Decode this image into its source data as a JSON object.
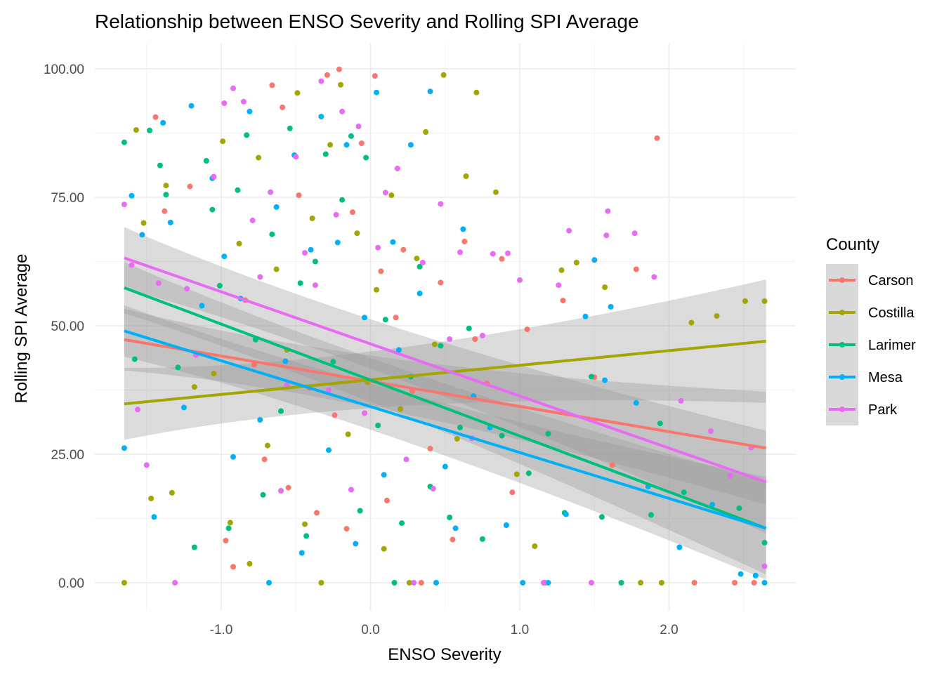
{
  "chart_data": {
    "type": "scatter",
    "title": "Relationship between ENSO Severity and Rolling SPI Average",
    "xlabel": "ENSO Severity",
    "ylabel": "Rolling SPI Average",
    "xlim": [
      -1.65,
      2.65
    ],
    "ylim": [
      0,
      100
    ],
    "x_ticks": [
      -1.0,
      0.0,
      1.0,
      2.0
    ],
    "x_tick_labels": [
      "-1.0",
      "0.0",
      "1.0",
      "2.0"
    ],
    "y_ticks": [
      0,
      25,
      50,
      75,
      100
    ],
    "y_tick_labels": [
      "0.00",
      "25.00",
      "50.00",
      "75.00",
      "100.00"
    ],
    "grid": true,
    "legend": {
      "title": "County",
      "placement": "right"
    },
    "series": [
      {
        "name": "Carson",
        "color": "#F8766D",
        "trend": {
          "x": [
            -1.65,
            2.65
          ],
          "y": [
            47.3,
            26.2
          ],
          "ci_half": [
            6,
            11
          ]
        },
        "points": [
          [
            -1.44,
            90.6
          ],
          [
            -1.38,
            72.3
          ],
          [
            -1.21,
            77.1
          ],
          [
            -0.97,
            8.2
          ],
          [
            -0.92,
            3.1
          ],
          [
            -0.84,
            55.0
          ],
          [
            -0.78,
            42.4
          ],
          [
            -0.71,
            24.0
          ],
          [
            -0.66,
            96.8
          ],
          [
            -0.59,
            92.5
          ],
          [
            -0.55,
            18.5
          ],
          [
            -0.48,
            75.4
          ],
          [
            -0.41,
            37.9
          ],
          [
            -0.36,
            13.6
          ],
          [
            -0.29,
            98.8
          ],
          [
            -0.24,
            32.6
          ],
          [
            -0.21,
            99.9
          ],
          [
            -0.16,
            10.5
          ],
          [
            -0.12,
            72.1
          ],
          [
            -0.06,
            85.5
          ],
          [
            0.03,
            98.6
          ],
          [
            0.07,
            60.6
          ],
          [
            0.11,
            16.0
          ],
          [
            0.17,
            51.6
          ],
          [
            0.22,
            64.8
          ],
          [
            0.28,
            37.3
          ],
          [
            0.34,
            0.0
          ],
          [
            0.4,
            26.1
          ],
          [
            0.47,
            58.4
          ],
          [
            0.55,
            8.4
          ],
          [
            0.63,
            66.4
          ],
          [
            0.7,
            47.4
          ],
          [
            0.78,
            38.8
          ],
          [
            0.88,
            63.0
          ],
          [
            0.95,
            17.6
          ],
          [
            1.05,
            49.3
          ],
          [
            1.17,
            0.0
          ],
          [
            1.29,
            54.9
          ],
          [
            1.5,
            40.0
          ],
          [
            1.62,
            22.9
          ],
          [
            1.78,
            61.0
          ],
          [
            1.92,
            86.5
          ],
          [
            2.17,
            0.0
          ],
          [
            2.44,
            0.0
          ],
          [
            2.57,
            0.0
          ]
        ]
      },
      {
        "name": "Costilla",
        "color": "#A3A500",
        "trend": {
          "x": [
            -1.65,
            2.65
          ],
          "y": [
            34.8,
            47.0
          ],
          "ci_half": [
            7,
            12
          ]
        },
        "points": [
          [
            -1.65,
            0.0
          ],
          [
            -1.57,
            88.1
          ],
          [
            -1.52,
            70.0
          ],
          [
            -1.47,
            16.4
          ],
          [
            -1.37,
            77.3
          ],
          [
            -1.33,
            17.5
          ],
          [
            -1.18,
            38.1
          ],
          [
            -1.05,
            40.7
          ],
          [
            -0.99,
            85.9
          ],
          [
            -0.94,
            11.7
          ],
          [
            -0.88,
            66.0
          ],
          [
            -0.81,
            3.7
          ],
          [
            -0.75,
            82.7
          ],
          [
            -0.69,
            26.7
          ],
          [
            -0.63,
            61.0
          ],
          [
            -0.56,
            45.3
          ],
          [
            -0.49,
            95.3
          ],
          [
            -0.44,
            11.4
          ],
          [
            -0.39,
            70.9
          ],
          [
            -0.33,
            0.0
          ],
          [
            -0.27,
            85.2
          ],
          [
            -0.2,
            96.9
          ],
          [
            -0.15,
            28.9
          ],
          [
            -0.09,
            68.0
          ],
          [
            -0.02,
            39.0
          ],
          [
            0.04,
            57.0
          ],
          [
            0.09,
            6.6
          ],
          [
            0.14,
            75.4
          ],
          [
            0.2,
            33.8
          ],
          [
            0.26,
            0.0
          ],
          [
            0.31,
            63.1
          ],
          [
            0.37,
            87.7
          ],
          [
            0.43,
            46.4
          ],
          [
            0.49,
            98.8
          ],
          [
            0.58,
            28.0
          ],
          [
            0.64,
            79.1
          ],
          [
            0.71,
            95.4
          ],
          [
            0.84,
            76.0
          ],
          [
            0.98,
            21.1
          ],
          [
            1.1,
            7.1
          ],
          [
            1.28,
            60.8
          ],
          [
            1.38,
            62.3
          ],
          [
            1.57,
            57.5
          ],
          [
            1.81,
            0.0
          ],
          [
            1.95,
            0.0
          ],
          [
            2.15,
            50.6
          ],
          [
            2.32,
            51.9
          ],
          [
            2.51,
            54.8
          ],
          [
            2.64,
            54.8
          ]
        ]
      },
      {
        "name": "Larimer",
        "color": "#00BF7D",
        "trend": {
          "x": [
            -1.65,
            2.65
          ],
          "y": [
            57.4,
            10.6
          ],
          "ci_half": [
            5,
            9
          ]
        },
        "points": [
          [
            -1.65,
            85.7
          ],
          [
            -1.58,
            43.5
          ],
          [
            -1.48,
            88.0
          ],
          [
            -1.41,
            81.2
          ],
          [
            -1.37,
            75.5
          ],
          [
            -1.29,
            41.9
          ],
          [
            -1.18,
            6.9
          ],
          [
            -1.1,
            82.1
          ],
          [
            -1.06,
            72.6
          ],
          [
            -1.01,
            57.8
          ],
          [
            -0.95,
            10.6
          ],
          [
            -0.89,
            76.4
          ],
          [
            -0.83,
            87.1
          ],
          [
            -0.77,
            47.3
          ],
          [
            -0.72,
            17.1
          ],
          [
            -0.66,
            67.8
          ],
          [
            -0.6,
            33.4
          ],
          [
            -0.54,
            88.4
          ],
          [
            -0.47,
            58.3
          ],
          [
            -0.43,
            9.1
          ],
          [
            -0.37,
            62.5
          ],
          [
            -0.3,
            83.4
          ],
          [
            -0.25,
            43.0
          ],
          [
            -0.19,
            74.5
          ],
          [
            -0.13,
            86.9
          ],
          [
            -0.07,
            14.0
          ],
          [
            -0.03,
            82.7
          ],
          [
            0.05,
            30.6
          ],
          [
            0.1,
            51.2
          ],
          [
            0.16,
            0.0
          ],
          [
            0.21,
            11.6
          ],
          [
            0.27,
            40.1
          ],
          [
            0.33,
            61.5
          ],
          [
            0.4,
            18.7
          ],
          [
            0.47,
            46.1
          ],
          [
            0.53,
            12.7
          ],
          [
            0.6,
            30.2
          ],
          [
            0.66,
            49.5
          ],
          [
            0.75,
            8.5
          ],
          [
            0.88,
            28.6
          ],
          [
            1.06,
            21.3
          ],
          [
            1.19,
            29.0
          ],
          [
            1.3,
            13.6
          ],
          [
            1.48,
            40.1
          ],
          [
            1.55,
            12.8
          ],
          [
            1.68,
            0.0
          ],
          [
            1.88,
            13.2
          ],
          [
            1.94,
            31.0
          ],
          [
            2.1,
            17.6
          ],
          [
            2.47,
            14.5
          ],
          [
            2.64,
            7.8
          ]
        ]
      },
      {
        "name": "Mesa",
        "color": "#00B0F6",
        "trend": {
          "x": [
            -1.65,
            2.65
          ],
          "y": [
            49.0,
            10.6
          ],
          "ci_half": [
            5,
            10
          ]
        },
        "points": [
          [
            -1.65,
            26.2
          ],
          [
            -1.6,
            75.3
          ],
          [
            -1.53,
            67.7
          ],
          [
            -1.45,
            12.8
          ],
          [
            -1.39,
            89.5
          ],
          [
            -1.34,
            70.1
          ],
          [
            -1.25,
            34.1
          ],
          [
            -1.2,
            92.8
          ],
          [
            -1.13,
            53.9
          ],
          [
            -1.06,
            78.7
          ],
          [
            -0.98,
            63.5
          ],
          [
            -0.92,
            24.5
          ],
          [
            -0.87,
            55.3
          ],
          [
            -0.81,
            91.7
          ],
          [
            -0.74,
            31.7
          ],
          [
            -0.68,
            0.0
          ],
          [
            -0.63,
            73.1
          ],
          [
            -0.57,
            43.1
          ],
          [
            -0.51,
            83.2
          ],
          [
            -0.46,
            5.8
          ],
          [
            -0.4,
            64.8
          ],
          [
            -0.33,
            90.7
          ],
          [
            -0.28,
            25.8
          ],
          [
            -0.22,
            66.2
          ],
          [
            -0.16,
            85.2
          ],
          [
            -0.1,
            7.6
          ],
          [
            -0.04,
            51.6
          ],
          [
            0.04,
            95.4
          ],
          [
            0.09,
            21.0
          ],
          [
            0.15,
            66.3
          ],
          [
            0.19,
            45.3
          ],
          [
            0.27,
            85.2
          ],
          [
            0.33,
            56.3
          ],
          [
            0.4,
            95.6
          ],
          [
            0.44,
            0.0
          ],
          [
            0.5,
            22.6
          ],
          [
            0.57,
            10.6
          ],
          [
            0.62,
            68.8
          ],
          [
            0.69,
            36.3
          ],
          [
            0.8,
            30.2
          ],
          [
            0.91,
            11.2
          ],
          [
            1.02,
            0.0
          ],
          [
            1.19,
            0.0
          ],
          [
            1.31,
            13.3
          ],
          [
            1.44,
            51.8
          ],
          [
            1.5,
            62.8
          ],
          [
            1.57,
            39.4
          ],
          [
            1.61,
            53.7
          ],
          [
            1.78,
            35.0
          ],
          [
            1.86,
            18.7
          ],
          [
            2.07,
            6.9
          ],
          [
            2.29,
            15.2
          ],
          [
            2.48,
            1.7
          ],
          [
            2.58,
            1.4
          ],
          [
            2.64,
            0.0
          ]
        ]
      },
      {
        "name": "Park",
        "color": "#E76BF3",
        "trend": {
          "x": [
            -1.65,
            2.65
          ],
          "y": [
            63.2,
            19.6
          ],
          "ci_half": [
            6,
            10
          ]
        },
        "points": [
          [
            -1.65,
            73.6
          ],
          [
            -1.6,
            61.8
          ],
          [
            -1.56,
            33.7
          ],
          [
            -1.5,
            22.9
          ],
          [
            -1.42,
            58.3
          ],
          [
            -1.31,
            0.0
          ],
          [
            -1.23,
            57.2
          ],
          [
            -1.17,
            44.3
          ],
          [
            -1.05,
            79.0
          ],
          [
            -0.98,
            93.3
          ],
          [
            -0.92,
            96.2
          ],
          [
            -0.85,
            93.6
          ],
          [
            -0.79,
            70.5
          ],
          [
            -0.74,
            59.5
          ],
          [
            -0.67,
            76.0
          ],
          [
            -0.6,
            17.9
          ],
          [
            -0.56,
            38.5
          ],
          [
            -0.5,
            82.9
          ],
          [
            -0.44,
            64.2
          ],
          [
            -0.37,
            57.9
          ],
          [
            -0.33,
            97.6
          ],
          [
            -0.28,
            37.5
          ],
          [
            -0.23,
            71.6
          ],
          [
            -0.19,
            91.7
          ],
          [
            -0.13,
            18.1
          ],
          [
            -0.08,
            88.8
          ],
          [
            -0.04,
            33.0
          ],
          [
            0.05,
            65.2
          ],
          [
            0.1,
            75.9
          ],
          [
            0.18,
            80.6
          ],
          [
            0.24,
            24.0
          ],
          [
            0.29,
            0.0
          ],
          [
            0.35,
            62.3
          ],
          [
            0.42,
            18.3
          ],
          [
            0.47,
            73.7
          ],
          [
            0.53,
            47.4
          ],
          [
            0.6,
            64.3
          ],
          [
            0.68,
            28.1
          ],
          [
            0.75,
            48.1
          ],
          [
            0.82,
            64.0
          ],
          [
            0.92,
            64.1
          ],
          [
            1.0,
            58.9
          ],
          [
            1.16,
            0.0
          ],
          [
            1.26,
            57.9
          ],
          [
            1.33,
            68.5
          ],
          [
            1.48,
            0.0
          ],
          [
            1.59,
            72.3
          ],
          [
            1.58,
            67.6
          ],
          [
            1.77,
            68.0
          ],
          [
            1.9,
            59.5
          ],
          [
            2.08,
            35.4
          ],
          [
            2.28,
            29.5
          ],
          [
            2.41,
            20.8
          ],
          [
            2.55,
            26.3
          ],
          [
            2.64,
            3.2
          ]
        ]
      }
    ]
  }
}
